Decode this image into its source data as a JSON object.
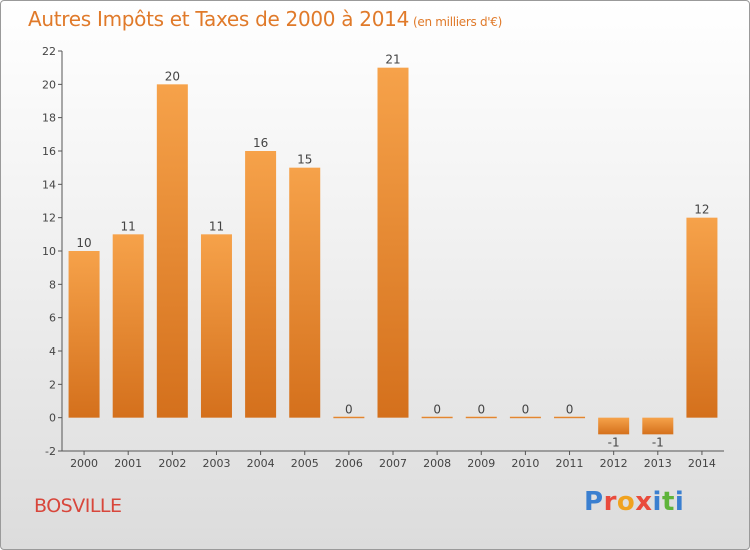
{
  "title_main": "Autres Impôts et Taxes de 2000 à 2014",
  "title_unit": "(en milliers d'€)",
  "commune": "BOSVILLE",
  "logo": {
    "letters": [
      "P",
      "r",
      "o",
      "x",
      "i",
      "t",
      "i"
    ],
    "colors": [
      "#3a7fd0",
      "#e94b3c",
      "#f0a21f",
      "#e94b3c",
      "#3a7fd0",
      "#5fb43a",
      "#3a7fd0"
    ]
  },
  "colors": {
    "bar_light": "#f6a24a",
    "bar_dark": "#d4701c",
    "title": "#e07a2a"
  },
  "chart_data": {
    "type": "bar",
    "title": "Autres Impôts et Taxes de 2000 à 2014",
    "categories": [
      "2000",
      "2001",
      "2002",
      "2003",
      "2004",
      "2005",
      "2006",
      "2007",
      "2008",
      "2009",
      "2010",
      "2011",
      "2012",
      "2013",
      "2014"
    ],
    "values": [
      10,
      11,
      20,
      11,
      16,
      15,
      0,
      21,
      0,
      0,
      0,
      0,
      -1,
      -1,
      12
    ],
    "value_labels": [
      "10",
      "11",
      "20",
      "11",
      "16",
      "15",
      "0",
      "21",
      "0",
      "0",
      "0",
      "0",
      "-1",
      "-1",
      "12"
    ],
    "yticks": [
      "-2",
      "0",
      "2",
      "4",
      "6",
      "8",
      "10",
      "12",
      "14",
      "16",
      "18",
      "20",
      "22"
    ],
    "ylim": [
      -2,
      22
    ],
    "grid": false
  }
}
